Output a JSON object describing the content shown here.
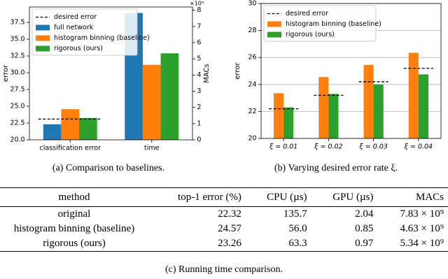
{
  "chart_data": [
    {
      "type": "bar",
      "categories": [
        "classification error",
        "time"
      ],
      "category_axes": [
        "y",
        "y2"
      ],
      "series": [
        {
          "name": "full network",
          "color": "#1f77b4",
          "values": [
            22.32,
            7.83
          ]
        },
        {
          "name": "histogram binning (baseline)",
          "color": "#ff7f0e",
          "values": [
            24.57,
            4.63
          ]
        },
        {
          "name": "rigorous (ours)",
          "color": "#2ca02c",
          "values": [
            23.26,
            5.34
          ]
        }
      ],
      "reference": {
        "name": "desired error",
        "color": "#000000",
        "values": [
          23.1,
          null
        ]
      },
      "ylabel": "error",
      "y2label": "MACs",
      "y2_offset_label": "×10⁹",
      "ylim": [
        20,
        39.8
      ],
      "yticks": [
        {
          "value": 20,
          "label": "20.0"
        },
        {
          "value": 22.5,
          "label": "22.5"
        },
        {
          "value": 25,
          "label": "25.0"
        },
        {
          "value": 27.5,
          "label": "27.5"
        },
        {
          "value": 30,
          "label": "30.0"
        },
        {
          "value": 32.5,
          "label": "32.5"
        },
        {
          "value": 35,
          "label": "35.0"
        },
        {
          "value": 37.5,
          "label": "37.5"
        }
      ],
      "y2lim": [
        0,
        8.2
      ],
      "y2ticks": [
        0,
        1,
        2,
        3,
        4,
        5,
        6,
        7,
        8
      ],
      "grid": false,
      "legend": "upper left",
      "caption": "(a) Comparison to baselines."
    },
    {
      "type": "bar",
      "categories": [
        "ξ = 0.01",
        "ξ = 0.02",
        "ξ = 0.03",
        "ξ = 0.04"
      ],
      "series": [
        {
          "name": "histogram binning (baseline)",
          "color": "#ff7f0e",
          "values": [
            23.35,
            24.55,
            25.45,
            26.35
          ]
        },
        {
          "name": "rigorous (ours)",
          "color": "#2ca02c",
          "values": [
            22.3,
            23.3,
            24.0,
            24.75
          ]
        }
      ],
      "reference": {
        "name": "desired error",
        "color": "#000000",
        "values": [
          22.2,
          23.2,
          24.2,
          25.2
        ]
      },
      "ylabel": "error",
      "ylim": [
        20,
        30
      ],
      "yticks": [
        20,
        22,
        24,
        26,
        28,
        30
      ],
      "grid": true,
      "legend": "upper left",
      "caption": "(b) Varying desired error rate ξ."
    }
  ],
  "table": {
    "header": [
      "method",
      "top-1 error (%)",
      "CPU (µs)",
      "GPU (µs)",
      "MACs"
    ],
    "rows": [
      [
        "original",
        "22.32",
        "135.7",
        "2.04",
        "7.83 × 10⁹"
      ],
      [
        "histogram binning (baseline)",
        "24.57",
        "56.0",
        "0.85",
        "4.63 × 10⁹"
      ],
      [
        "rigorous (ours)",
        "23.26",
        "63.3",
        "0.97",
        "5.34 × 10⁹"
      ]
    ],
    "caption": "(c) Running time comparison."
  }
}
